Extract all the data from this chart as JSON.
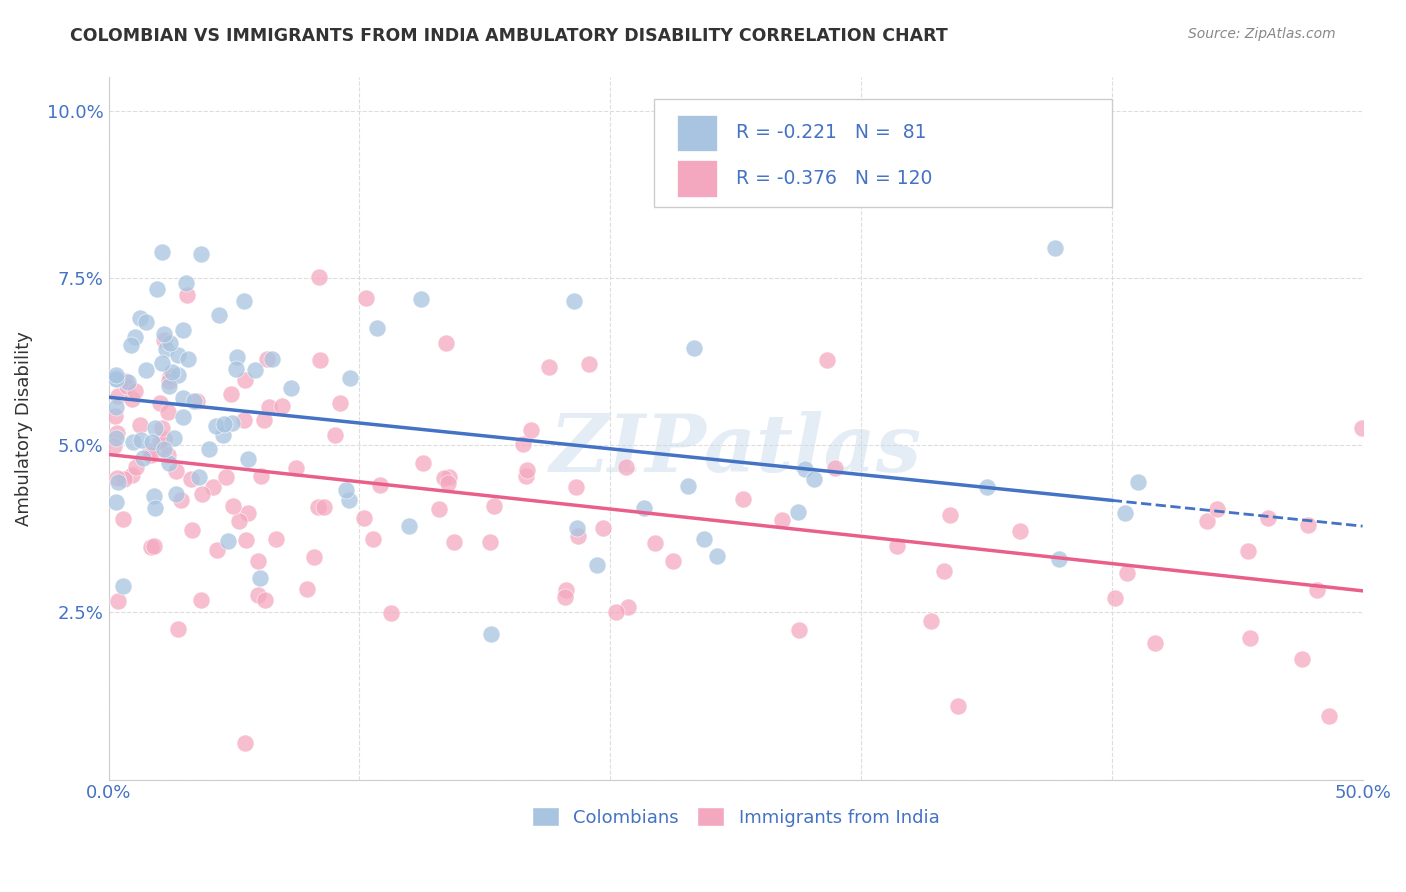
{
  "title": "COLOMBIAN VS IMMIGRANTS FROM INDIA AMBULATORY DISABILITY CORRELATION CHART",
  "source": "Source: ZipAtlas.com",
  "ylabel": "Ambulatory Disability",
  "xlim": [
    0.0,
    0.5
  ],
  "ylim": [
    0.0,
    0.105
  ],
  "col_color": "#a8c4e0",
  "ind_color": "#f4a8c0",
  "col_line_color": "#4472c4",
  "ind_line_color": "#e8608a",
  "col_R": -0.221,
  "col_N": 81,
  "ind_R": -0.376,
  "ind_N": 120,
  "legend_label_col": "Colombians",
  "legend_label_ind": "Immigrants from India",
  "watermark": "ZIPatlas",
  "background_color": "#ffffff",
  "grid_color": "#dddddd",
  "title_color": "#333333",
  "axis_color": "#4472c4"
}
